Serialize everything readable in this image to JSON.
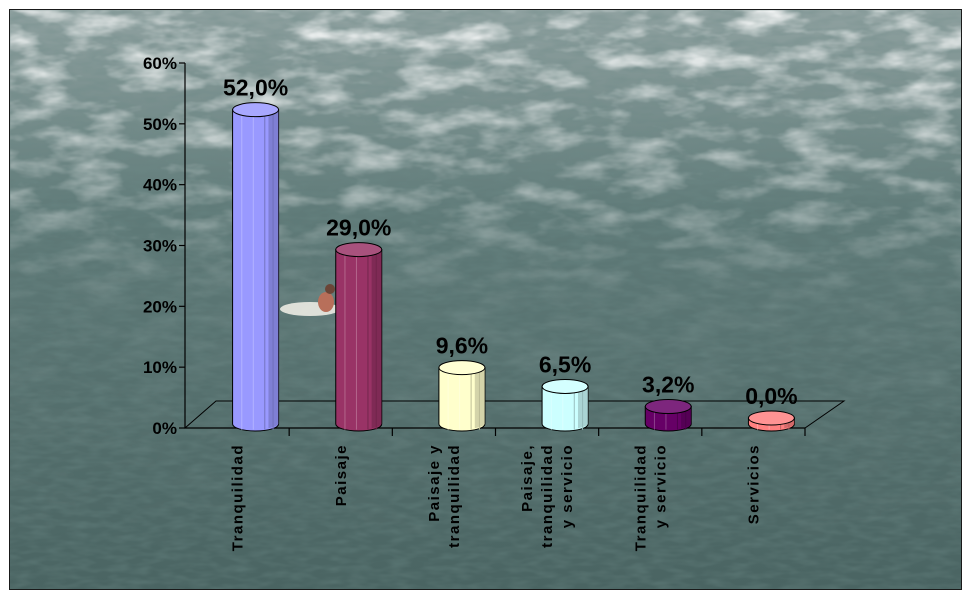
{
  "chart_data": {
    "type": "bar",
    "categories": [
      [
        "Tranquilidad"
      ],
      [
        "Paisaje"
      ],
      [
        "Paisaje y",
        "tranquilidad"
      ],
      [
        "Paisaje,",
        "tranquilidad",
        "y servicio"
      ],
      [
        "Tranquilidad",
        "y servicio"
      ],
      [
        "Servicios"
      ]
    ],
    "values": [
      52.0,
      29.0,
      9.6,
      6.5,
      3.2,
      0.0
    ],
    "value_labels": [
      "52,0%",
      "29,0%",
      "9,6%",
      "6,5%",
      "3,2%",
      "0,0%"
    ],
    "bar_colors": [
      "#9999ff",
      "#993366",
      "#ffffcc",
      "#ccffff",
      "#660066",
      "#ff8080"
    ],
    "yticks": [
      "0%",
      "10%",
      "20%",
      "30%",
      "40%",
      "50%",
      "60%"
    ],
    "ylim": [
      0,
      60
    ],
    "title": "",
    "xlabel": "",
    "ylabel": "",
    "style": "3d-cylinder",
    "background": "ocean-water-photo",
    "grid": false,
    "legend": "none"
  }
}
